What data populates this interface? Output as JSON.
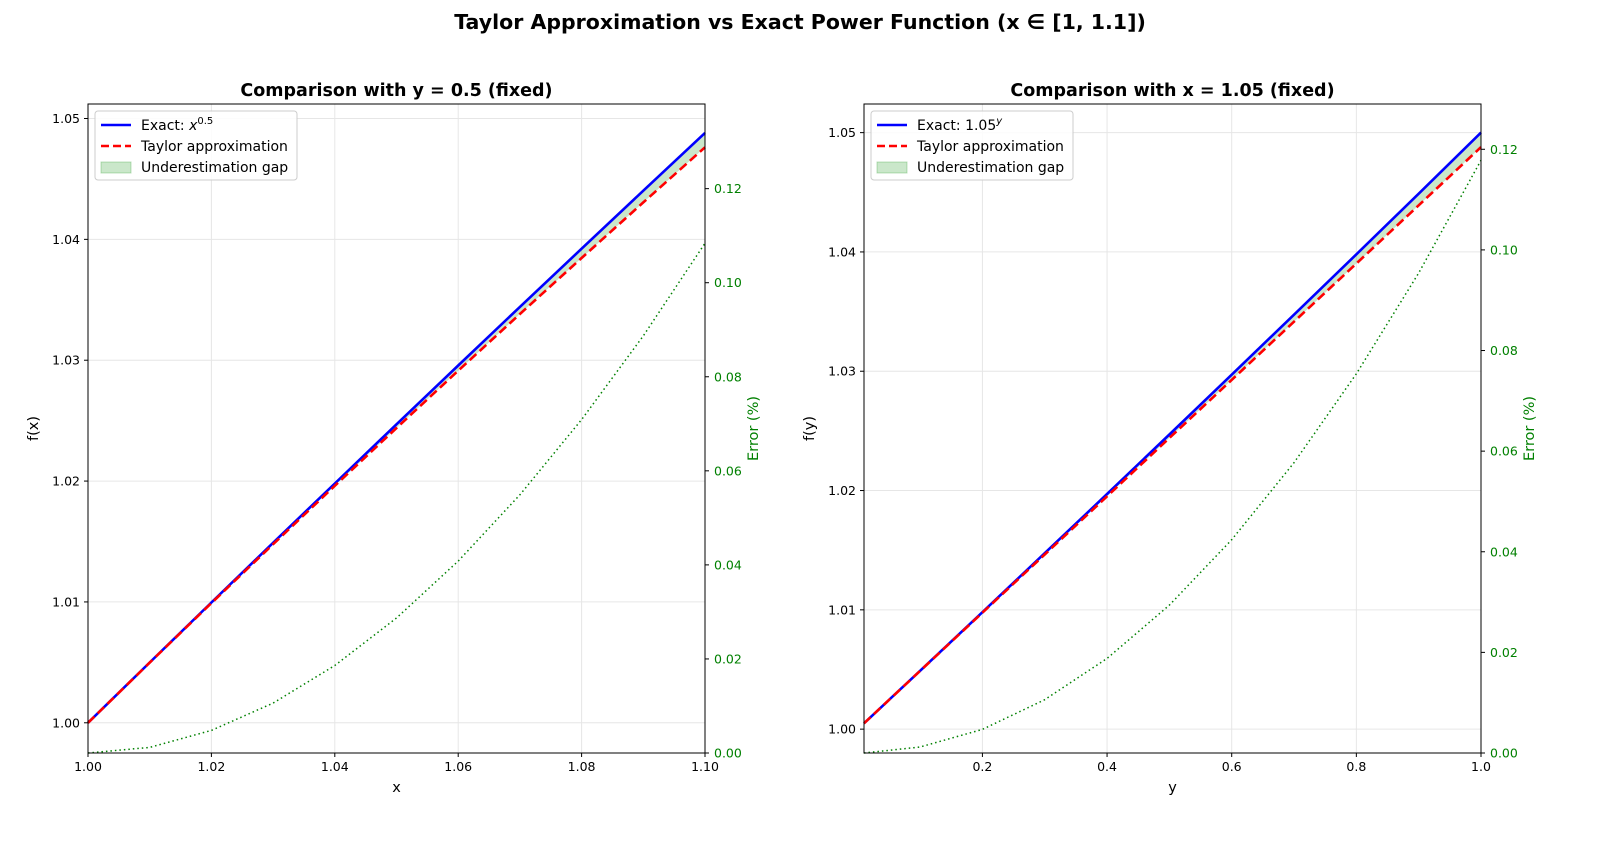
{
  "suptitle": "Taylor Approximation vs Exact Power Function (x ∈ [1, 1.1])",
  "colors": {
    "exact": "#0000ff",
    "taylor": "#ff0000",
    "gap": "#2ca02c",
    "error": "#008000"
  },
  "chart_data": [
    {
      "type": "line",
      "title": "Comparison with y = 0.5 (fixed)",
      "xlabel": "x",
      "ylabel": "f(x)",
      "y2label": "Error (%)",
      "xlim": [
        1.0,
        1.1
      ],
      "ylim": [
        0.9975,
        1.0512
      ],
      "y2lim": [
        0.0,
        0.138
      ],
      "xticks": [
        1.0,
        1.02,
        1.04,
        1.06,
        1.08,
        1.1
      ],
      "xtick_labels": [
        "1.00",
        "1.02",
        "1.04",
        "1.06",
        "1.08",
        "1.10"
      ],
      "yticks": [
        1.0,
        1.01,
        1.02,
        1.03,
        1.04,
        1.05
      ],
      "ytick_labels": [
        "1.00",
        "1.01",
        "1.02",
        "1.03",
        "1.04",
        "1.05"
      ],
      "y2ticks": [
        0.0,
        0.02,
        0.04,
        0.06,
        0.08,
        0.1,
        0.12
      ],
      "y2tick_labels": [
        "0.00",
        "0.02",
        "0.04",
        "0.06",
        "0.08",
        "0.10",
        "0.12"
      ],
      "grid": true,
      "legend": {
        "placement": "upper-left",
        "entries": [
          {
            "label_main": "Exact: ",
            "label_base": "x",
            "label_sup": "0.5",
            "style": "solid"
          },
          {
            "label_main": "Taylor approximation",
            "label_base": "",
            "label_sup": "",
            "style": "dashed"
          },
          {
            "label_main": "Underestimation gap",
            "label_base": "",
            "label_sup": "",
            "style": "fill"
          }
        ]
      },
      "series": [
        {
          "name": "Exact: x^0.5",
          "axis": "left",
          "x": [
            1.0,
            1.01,
            1.02,
            1.03,
            1.04,
            1.05,
            1.06,
            1.07,
            1.08,
            1.09,
            1.1
          ],
          "y": [
            1.0,
            1.00499,
            1.00995,
            1.01489,
            1.0198,
            1.0247,
            1.02956,
            1.03441,
            1.03923,
            1.04403,
            1.04881
          ]
        },
        {
          "name": "Taylor approximation",
          "axis": "left",
          "x": [
            1.0,
            1.01,
            1.02,
            1.03,
            1.04,
            1.05,
            1.06,
            1.07,
            1.08,
            1.09,
            1.1
          ],
          "y": [
            1.0,
            1.00498,
            1.0099,
            1.01478,
            1.01961,
            1.02439,
            1.02913,
            1.03382,
            1.03846,
            1.04306,
            1.04762
          ]
        },
        {
          "name": "Error (%)",
          "axis": "right",
          "x": [
            1.0,
            1.01,
            1.02,
            1.03,
            1.04,
            1.05,
            1.06,
            1.07,
            1.08,
            1.09,
            1.1
          ],
          "y": [
            0.0,
            0.0012,
            0.0048,
            0.0106,
            0.0186,
            0.0287,
            0.0408,
            0.0549,
            0.0709,
            0.0887,
            0.1084
          ]
        }
      ]
    },
    {
      "type": "line",
      "title": "Comparison with x = 1.05 (fixed)",
      "xlabel": "y",
      "ylabel": "f(y)",
      "y2label": "Error (%)",
      "xlim": [
        0.01,
        1.0
      ],
      "ylim": [
        0.998,
        1.0524
      ],
      "y2lim": [
        0.0,
        0.129
      ],
      "xticks": [
        0.2,
        0.4,
        0.6,
        0.8,
        1.0
      ],
      "xtick_labels": [
        "0.2",
        "0.4",
        "0.6",
        "0.8",
        "1.0"
      ],
      "yticks": [
        1.0,
        1.01,
        1.02,
        1.03,
        1.04,
        1.05
      ],
      "ytick_labels": [
        "1.00",
        "1.01",
        "1.02",
        "1.03",
        "1.04",
        "1.05"
      ],
      "y2ticks": [
        0.0,
        0.02,
        0.04,
        0.06,
        0.08,
        0.1,
        0.12
      ],
      "y2tick_labels": [
        "0.00",
        "0.02",
        "0.04",
        "0.06",
        "0.08",
        "0.10",
        "0.12"
      ],
      "grid": true,
      "legend": {
        "placement": "upper-left",
        "entries": [
          {
            "label_main": "Exact: ",
            "label_base": "1.05",
            "label_sup": "y",
            "style": "solid"
          },
          {
            "label_main": "Taylor approximation",
            "label_base": "",
            "label_sup": "",
            "style": "dashed"
          },
          {
            "label_main": "Underestimation gap",
            "label_base": "",
            "label_sup": "",
            "style": "fill"
          }
        ]
      },
      "series": [
        {
          "name": "Exact: 1.05^y",
          "axis": "left",
          "x": [
            0.01,
            0.1,
            0.2,
            0.3,
            0.4,
            0.5,
            0.6,
            0.7,
            0.8,
            0.9,
            1.0
          ],
          "y": [
            1.00049,
            1.00489,
            1.0098,
            1.01475,
            1.01971,
            1.0247,
            1.02971,
            1.03474,
            1.0398,
            1.04488,
            1.05
          ]
        },
        {
          "name": "Taylor approximation",
          "axis": "left",
          "x": [
            0.01,
            0.1,
            0.2,
            0.3,
            0.4,
            0.5,
            0.6,
            0.7,
            0.8,
            0.9,
            1.0
          ],
          "y": [
            1.00049,
            1.00488,
            1.00976,
            1.01464,
            1.01952,
            1.0244,
            1.02927,
            1.03415,
            1.03903,
            1.04391,
            1.04879
          ]
        },
        {
          "name": "Error (%)",
          "axis": "right",
          "x": [
            0.01,
            0.1,
            0.2,
            0.3,
            0.4,
            0.5,
            0.6,
            0.7,
            0.8,
            0.9,
            1.0
          ],
          "y": [
            0.0,
            0.0012,
            0.0047,
            0.0106,
            0.0188,
            0.0294,
            0.0424,
            0.0577,
            0.0754,
            0.0954,
            0.1178
          ]
        }
      ]
    }
  ]
}
